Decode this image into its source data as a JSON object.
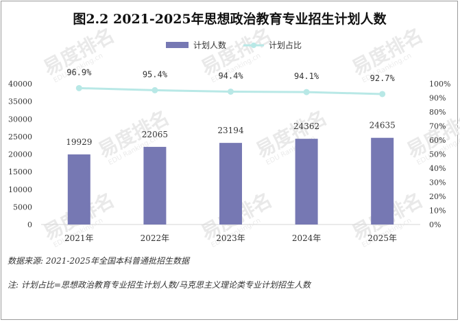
{
  "watermark": {
    "text": "易度排名",
    "sub": "EDU Ranking.cn"
  },
  "chart_data": {
    "type": "bar",
    "title": "图2.2 2021-2025年思想政治教育专业招生计划人数",
    "categories": [
      "2021年",
      "2022年",
      "2023年",
      "2024年",
      "2025年"
    ],
    "series": [
      {
        "name": "计划人数",
        "type": "bar",
        "axis": "left",
        "color": "#7678b3",
        "values": [
          19929,
          22065,
          23194,
          24362,
          24635
        ],
        "labels": [
          "19929",
          "22065",
          "23194",
          "24362",
          "24635"
        ]
      },
      {
        "name": "计划占比",
        "type": "line",
        "axis": "right",
        "color": "#b8e8e6",
        "values": [
          96.9,
          95.4,
          94.4,
          94.1,
          92.7
        ],
        "labels": [
          "96.9%",
          "95.4%",
          "94.4%",
          "94.1%",
          "92.7%"
        ]
      }
    ],
    "y_left": {
      "min": 0,
      "max": 40000,
      "step": 5000,
      "ticks": [
        "0",
        "5000",
        "10000",
        "15000",
        "20000",
        "25000",
        "30000",
        "35000",
        "40000"
      ]
    },
    "y_right": {
      "min": 0,
      "max": 100,
      "step": 10,
      "ticks": [
        "0%",
        "10%",
        "20%",
        "30%",
        "40%",
        "50%",
        "60%",
        "70%",
        "80%",
        "90%",
        "100%"
      ]
    },
    "legend_position": "top-center",
    "grid": false
  },
  "notes": {
    "source": "数据来源:  2021-2025年全国本科普通批招生数据",
    "footnote": "注:  计划占比=思想政治教育专业招生计划人数/马克思主义理论类专业计划招生人数"
  }
}
